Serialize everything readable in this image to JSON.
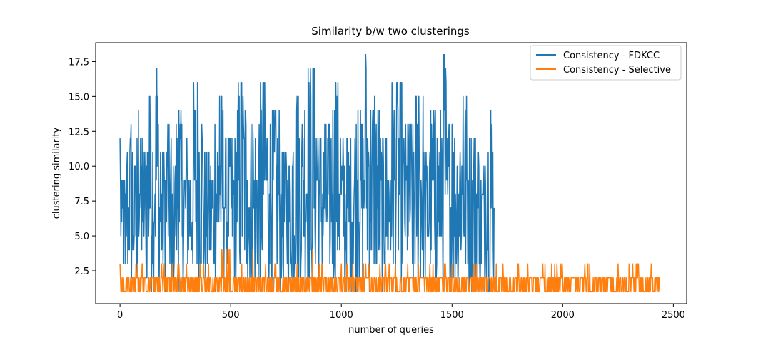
{
  "chart_data": {
    "type": "line",
    "title": "Similarity b/w two clusterings",
    "xlabel": "number of queries",
    "ylabel": "clustering similarity",
    "xlim": [
      -110,
      2560
    ],
    "ylim": [
      0.15,
      18.85
    ],
    "xticks": [
      0,
      500,
      1000,
      1500,
      2000,
      2500
    ],
    "xtick_labels": [
      "0",
      "500",
      "1000",
      "1500",
      "2000",
      "2500"
    ],
    "yticks": [
      2.5,
      5.0,
      7.5,
      10.0,
      12.5,
      15.0,
      17.5
    ],
    "ytick_labels": [
      "2.5",
      "5.0",
      "7.5",
      "10.0",
      "12.5",
      "15.0",
      "17.5"
    ],
    "grid": false,
    "legend_position": "top-right",
    "series": [
      {
        "name": "Consistency - FDKCC",
        "color": "#1f77b4",
        "x_range": [
          0,
          1690
        ],
        "y_range": [
          1,
          18
        ],
        "description_values": "noisy integer-valued series, mostly between 1 and 15, peaks at 18 near x=1110 and x=1465",
        "x": [
          0,
          8,
          16,
          25,
          33,
          41,
          50,
          58,
          66,
          75,
          83,
          91,
          100,
          116,
          133,
          150,
          166,
          175,
          183,
          200,
          216,
          233,
          250,
          266,
          283,
          300,
          325,
          350,
          375,
          400,
          425,
          450,
          475,
          500,
          525,
          550,
          575,
          600,
          625,
          650,
          675,
          700,
          725,
          750,
          775,
          800,
          825,
          850,
          866,
          875,
          900,
          925,
          950,
          975,
          1000,
          1025,
          1050,
          1075,
          1100,
          1110,
          1125,
          1150,
          1175,
          1200,
          1225,
          1250,
          1275,
          1300,
          1325,
          1350,
          1375,
          1400,
          1425,
          1450,
          1465,
          1475,
          1500,
          1525,
          1550,
          1575,
          1600,
          1625,
          1650,
          1675,
          1690
        ],
        "values": [
          12,
          6,
          9,
          3,
          11,
          7,
          13,
          4,
          10,
          2,
          14,
          8,
          12,
          6,
          15,
          3,
          17,
          5,
          11,
          9,
          13,
          2,
          10,
          14,
          6,
          12,
          4,
          16,
          8,
          11,
          3,
          15,
          7,
          12,
          5,
          16,
          9,
          13,
          2,
          16,
          8,
          14,
          6,
          11,
          3,
          15,
          10,
          17,
          4,
          17,
          9,
          13,
          5,
          16,
          8,
          12,
          3,
          14,
          7,
          18,
          10,
          15,
          4,
          12,
          9,
          16,
          6,
          13,
          2,
          15,
          8,
          11,
          14,
          5,
          18,
          9,
          13,
          4,
          15,
          7,
          12,
          3,
          10,
          14,
          7
        ]
      },
      {
        "name": "Consistency - Selective",
        "color": "#ff7f0e",
        "x_range": [
          0,
          2440
        ],
        "y_range": [
          1,
          4
        ],
        "description_values": "mostly 1-2, occasional spikes to 3 and 4 up to x~1700, then 1-3 until 2440",
        "x": [
          0,
          50,
          100,
          150,
          200,
          250,
          300,
          350,
          400,
          450,
          490,
          550,
          600,
          650,
          700,
          750,
          800,
          870,
          900,
          950,
          1000,
          1050,
          1100,
          1150,
          1200,
          1250,
          1300,
          1350,
          1400,
          1450,
          1500,
          1550,
          1600,
          1650,
          1700,
          1750,
          1800,
          1850,
          1900,
          1950,
          2000,
          2050,
          2100,
          2150,
          2200,
          2250,
          2300,
          2350,
          2400,
          2440
        ],
        "values": [
          3,
          2,
          3,
          2,
          3,
          2,
          3,
          2,
          3,
          2,
          4,
          3,
          4,
          2,
          3,
          2,
          3,
          4,
          3,
          2,
          3,
          2,
          3,
          2,
          3,
          2,
          3,
          2,
          3,
          2,
          3,
          2,
          3,
          2,
          3,
          2,
          3,
          2,
          2,
          3,
          2,
          2,
          3,
          2,
          2,
          3,
          3,
          2,
          3,
          1
        ]
      }
    ]
  }
}
